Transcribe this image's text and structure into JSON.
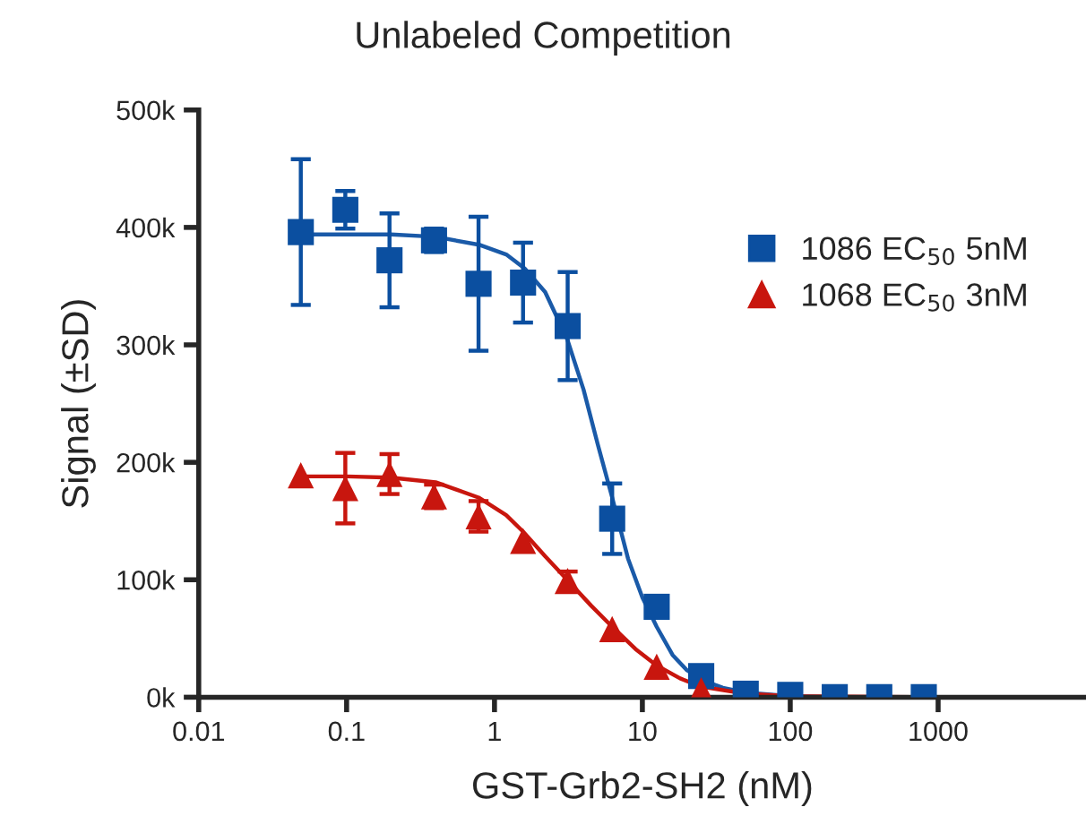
{
  "chart_data": {
    "type": "scatter",
    "title": "Unlabeled Competition",
    "xlabel": "GST-Grb2-SH2 (nM)",
    "ylabel": "Signal (±SD)",
    "log": "x",
    "xlim": [
      0.01,
      10000
    ],
    "xticks": [
      0.01,
      0.1,
      1,
      10,
      100,
      1000
    ],
    "ylim": [
      0,
      500000
    ],
    "yticks": [
      {
        "value": 0,
        "label": "0k"
      },
      {
        "value": 100000,
        "label": "100k"
      },
      {
        "value": 200000,
        "label": "200k"
      },
      {
        "value": 300000,
        "label": "300k"
      },
      {
        "value": 400000,
        "label": "400k"
      },
      {
        "value": 500000,
        "label": "500k"
      }
    ],
    "x": [
      0.049,
      0.098,
      0.195,
      0.39,
      0.78,
      1.56,
      3.125,
      6.25,
      12.5,
      25,
      50,
      100,
      200,
      400,
      800
    ],
    "legend": "right",
    "grid": false,
    "series": [
      {
        "type": "line",
        "color": "#1a5aa8",
        "marker": "none",
        "line_style": "solid",
        "x": [
          0.049,
          0.1,
          0.2,
          0.4,
          0.8,
          1.2,
          1.6,
          2.2,
          3.1,
          4.0,
          5.0,
          6.25,
          8.0,
          10,
          12.5,
          16,
          20,
          25,
          35,
          50,
          100,
          200,
          800
        ],
        "values": [
          394000,
          394000,
          394000,
          392000,
          385000,
          377000,
          365000,
          345000,
          305000,
          262000,
          215000,
          170000,
          118000,
          85000,
          60000,
          36000,
          23000,
          15000,
          8000,
          4000,
          1000,
          0,
          0
        ]
      },
      {
        "type": "line",
        "color": "#c8160e",
        "marker": "none",
        "line_style": "solid",
        "x": [
          0.049,
          0.1,
          0.2,
          0.4,
          0.78,
          1.2,
          1.56,
          2.2,
          3.1,
          4.5,
          6.25,
          9,
          12.5,
          18,
          25,
          50,
          100,
          800
        ],
        "values": [
          188000,
          188000,
          187000,
          183000,
          170000,
          155000,
          141000,
          120000,
          100000,
          78000,
          60000,
          41000,
          27000,
          16000,
          9000,
          3000,
          1000,
          0
        ]
      },
      {
        "name": "1086 EC$_{50}$ 5nM",
        "color": "#0b4fa0",
        "marker": "square",
        "values": [
          396000,
          415000,
          372000,
          389000,
          352000,
          353000,
          316000,
          152000,
          77000,
          18000,
          3000,
          2000,
          0,
          0,
          0
        ],
        "errors": [
          62000,
          16000,
          40000,
          10000,
          57000,
          34000,
          46000,
          30000,
          null,
          null,
          null,
          null,
          null,
          null,
          null
        ]
      },
      {
        "name": "1068 EC$_{50}$ 3nM",
        "color": "#c8160e",
        "marker": "triangle",
        "values": [
          189000,
          178000,
          190000,
          171000,
          154000,
          133000,
          99000,
          58000,
          26000,
          6000,
          null,
          null,
          null,
          null,
          null
        ],
        "errors": [
          null,
          30000,
          17000,
          10000,
          13000,
          null,
          8000,
          null,
          null,
          null,
          null,
          null,
          null,
          null,
          null
        ]
      }
    ]
  }
}
